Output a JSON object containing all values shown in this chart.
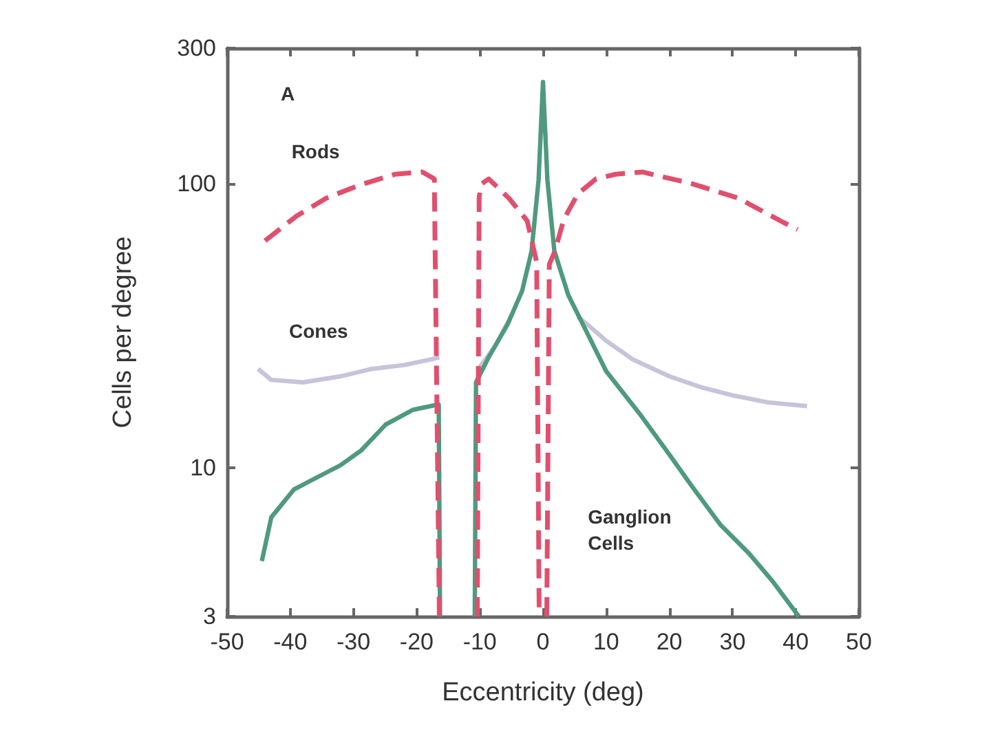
{
  "chart_data": {
    "type": "line",
    "xlabel": "Eccentricity (deg)",
    "ylabel": "Cells per degree",
    "annotations": [
      "A"
    ],
    "xlim": [
      -50,
      50
    ],
    "xticks": [
      -50,
      -40,
      -30,
      -20,
      -10,
      0,
      10,
      20,
      30,
      40,
      50
    ],
    "ylim": [
      3,
      300
    ],
    "yticks": [
      3,
      10,
      100,
      300
    ],
    "log": "y",
    "grid": false,
    "marker": "none",
    "series": [
      {
        "name": "Rods",
        "color": "#e0506e",
        "line_style": "dashed",
        "x": [
          -44,
          -39,
          -34.3,
          -29,
          -23.4,
          -19.1,
          -17.2,
          -16.4,
          -13.5,
          -10.4,
          -10.1,
          -9.7,
          -8.6,
          -5.4,
          -2.5,
          -1.0,
          -0.6,
          0,
          0.6,
          1.0,
          1.9,
          3.3,
          5.5,
          8.4,
          11.5,
          15.7,
          23.6,
          30.9,
          38.1,
          40.3
        ],
        "values": [
          63,
          77,
          89,
          99,
          108,
          110,
          104,
          3,
          null,
          3,
          90,
          100,
          104,
          89,
          74,
          53,
          3,
          null,
          3,
          52,
          58,
          75,
          92,
          104,
          108,
          110,
          100,
          89,
          73,
          69
        ]
      },
      {
        "name": "Cones",
        "color": "#c9c3da",
        "line_style": "solid",
        "x": [
          -45.1,
          -43,
          -38,
          -32,
          -27.1,
          -22,
          -17.7,
          -16.4,
          -13.5,
          -10.4,
          -7.5,
          -4.8,
          0,
          5.5,
          7,
          10,
          14.2,
          20,
          25.1,
          30,
          35.6,
          41.8
        ],
        "values": [
          22.3,
          20.4,
          20,
          21,
          22.3,
          23,
          24.1,
          24.5,
          null,
          22,
          27,
          35,
          null,
          34,
          32,
          28,
          24.1,
          21,
          19.2,
          18,
          17,
          16.5
        ]
      },
      {
        "name": "Ganglion Cells",
        "color": "#4f9a7e",
        "line_style": "solid",
        "x": [
          -44.5,
          -43,
          -39.4,
          -36,
          -32.1,
          -28.8,
          -24.9,
          -20.6,
          -17.2,
          -16.5,
          -16.3,
          -13.5,
          -10.8,
          -10.6,
          -8.6,
          -5.6,
          -3.3,
          -1.8,
          -0.7,
          0,
          0.7,
          1.8,
          4,
          7,
          10,
          15.3,
          19.8,
          23.6,
          28.1,
          32.6,
          36.3,
          40.5
        ],
        "values": [
          4.7,
          6.7,
          8.4,
          9.2,
          10.2,
          11.5,
          14.2,
          16,
          16.6,
          16.7,
          3,
          null,
          3,
          20,
          24.5,
          32,
          42,
          58,
          103,
          228,
          103,
          58,
          40.6,
          29.8,
          21.9,
          15.5,
          11.3,
          8.6,
          6.3,
          5,
          4,
          3
        ]
      }
    ]
  }
}
